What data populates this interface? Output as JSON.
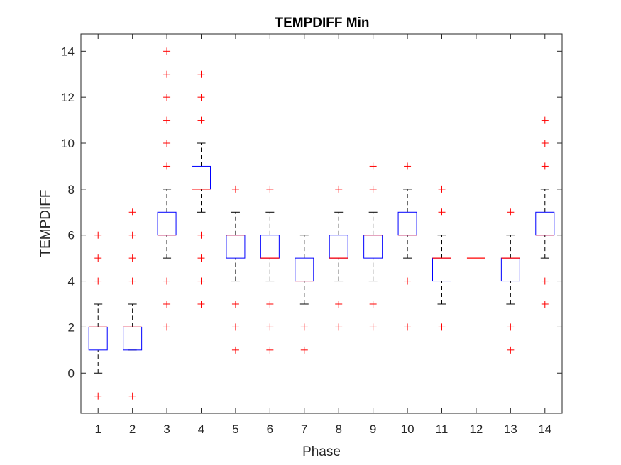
{
  "chart_data": {
    "type": "box",
    "title": "TEMPDIFF Min",
    "xlabel": "Phase",
    "ylabel": "TEMPDIFF",
    "ylim": [
      -1.75,
      14.75
    ],
    "yticks": [
      0,
      2,
      4,
      6,
      8,
      10,
      12,
      14
    ],
    "grid": false,
    "colors": {
      "box": "#0000ff",
      "median": "#ff0000",
      "whisker": "#000000",
      "outlier": "#ff0000",
      "axes": "#262626"
    },
    "boxes": [
      {
        "label": "1",
        "q1": 1,
        "median": 2,
        "q3": 2,
        "whisker_low": 0,
        "whisker_high": 3,
        "outliers": [
          -1,
          4,
          5,
          6
        ]
      },
      {
        "label": "2",
        "q1": 1,
        "median": 2,
        "q3": 2,
        "whisker_low": 1,
        "whisker_high": 3,
        "outliers": [
          -1,
          4,
          5,
          6,
          7
        ]
      },
      {
        "label": "3",
        "q1": 6,
        "median": 6,
        "q3": 7,
        "whisker_low": 5,
        "whisker_high": 8,
        "outliers": [
          2,
          3,
          4,
          9,
          10,
          11,
          12,
          13,
          14
        ]
      },
      {
        "label": "4",
        "q1": 8,
        "median": 8,
        "q3": 9,
        "whisker_low": 7,
        "whisker_high": 10,
        "outliers": [
          3,
          4,
          5,
          6,
          11,
          12,
          13
        ]
      },
      {
        "label": "5",
        "q1": 5,
        "median": 6,
        "q3": 6,
        "whisker_low": 4,
        "whisker_high": 7,
        "outliers": [
          1,
          2,
          3,
          8
        ]
      },
      {
        "label": "6",
        "q1": 5,
        "median": 5,
        "q3": 6,
        "whisker_low": 4,
        "whisker_high": 7,
        "outliers": [
          1,
          2,
          3,
          8
        ]
      },
      {
        "label": "7",
        "q1": 4,
        "median": 4,
        "q3": 5,
        "whisker_low": 3,
        "whisker_high": 6,
        "outliers": [
          1,
          2
        ]
      },
      {
        "label": "8",
        "q1": 5,
        "median": 5,
        "q3": 6,
        "whisker_low": 4,
        "whisker_high": 7,
        "outliers": [
          2,
          3,
          8
        ]
      },
      {
        "label": "9",
        "q1": 5,
        "median": 6,
        "q3": 6,
        "whisker_low": 4,
        "whisker_high": 7,
        "outliers": [
          2,
          3,
          8,
          9
        ]
      },
      {
        "label": "10",
        "q1": 6,
        "median": 6,
        "q3": 7,
        "whisker_low": 5,
        "whisker_high": 8,
        "outliers": [
          2,
          4,
          9
        ]
      },
      {
        "label": "11",
        "q1": 4,
        "median": 5,
        "q3": 5,
        "whisker_low": 3,
        "whisker_high": 6,
        "outliers": [
          2,
          7,
          8
        ]
      },
      {
        "label": "12",
        "q1": 5,
        "median": 5,
        "q3": 5,
        "whisker_low": 5,
        "whisker_high": 5,
        "outliers": []
      },
      {
        "label": "13",
        "q1": 4,
        "median": 5,
        "q3": 5,
        "whisker_low": 3,
        "whisker_high": 6,
        "outliers": [
          1,
          2,
          7
        ]
      },
      {
        "label": "14",
        "q1": 6,
        "median": 6,
        "q3": 7,
        "whisker_low": 5,
        "whisker_high": 8,
        "outliers": [
          3,
          4,
          9,
          10,
          11
        ]
      }
    ]
  }
}
